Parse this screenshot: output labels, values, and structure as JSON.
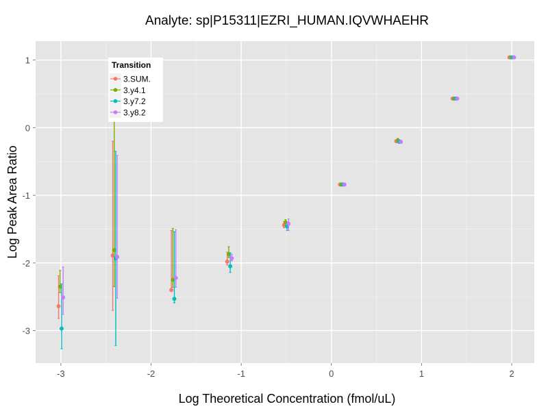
{
  "chart_data": {
    "type": "scatter",
    "title": "Analyte: sp|P15311|EZRI_HUMAN.IQVWHAEHR",
    "xlabel": "Log Theoretical Concentration (fmol/uL)",
    "ylabel": "Log Peak Area Ratio",
    "xlim": [
      -3.28,
      2.25
    ],
    "ylim": [
      -3.48,
      1.28
    ],
    "xticks": [
      -3,
      -2,
      -1,
      0,
      1,
      2
    ],
    "xtick_labels": [
      "-3",
      "-2",
      "-1",
      "0",
      "1",
      "2"
    ],
    "yticks": [
      -3,
      -2,
      -1,
      0,
      1
    ],
    "ytick_labels": [
      "-3",
      "-2",
      "-1",
      "0",
      "1"
    ],
    "grid": true,
    "legend": {
      "title": "Transition",
      "placement": "top-left"
    },
    "x": [
      -3.0,
      -2.4,
      -1.75,
      -1.13,
      -0.5,
      0.12,
      0.745,
      1.37,
      2.0
    ],
    "series": [
      {
        "name": "3.SUM.",
        "color": "#F8766D",
        "y": [
          -2.64,
          -1.89,
          -2.4,
          -1.98,
          -1.44,
          -0.84,
          -0.2,
          0.43,
          1.04
        ],
        "ymin": [
          -2.82,
          -2.7,
          -2.42,
          -2.03,
          -1.48,
          -0.86,
          -0.22,
          0.42,
          1.03
        ],
        "ymax": [
          -2.19,
          -0.2,
          -1.52,
          -1.84,
          -1.39,
          -0.82,
          -0.18,
          0.44,
          1.05
        ]
      },
      {
        "name": "3.y4.1",
        "color": "#7CAE00",
        "y": [
          -2.35,
          -1.81,
          -2.25,
          -1.87,
          -1.4,
          -0.84,
          -0.19,
          0.43,
          1.04
        ],
        "ymin": [
          -2.44,
          -2.35,
          -2.36,
          -1.92,
          -1.44,
          -0.86,
          -0.21,
          0.42,
          1.03
        ],
        "ymax": [
          -2.11,
          0.4,
          -1.49,
          -1.76,
          -1.36,
          -0.82,
          -0.16,
          0.44,
          1.05
        ]
      },
      {
        "name": "3.y7.2",
        "color": "#00BFC4",
        "y": [
          -2.97,
          -1.93,
          -2.53,
          -2.05,
          -1.46,
          -0.84,
          -0.21,
          0.43,
          1.04
        ],
        "ymin": [
          -3.27,
          -3.22,
          -2.59,
          -2.14,
          -1.52,
          -0.86,
          -0.23,
          0.42,
          1.03
        ],
        "ymax": [
          -2.31,
          -0.35,
          -1.54,
          -1.85,
          -1.4,
          -0.82,
          -0.18,
          0.44,
          1.05
        ]
      },
      {
        "name": "3.y8.2",
        "color": "#C77CFF",
        "y": [
          -2.51,
          -1.91,
          -2.22,
          -1.93,
          -1.42,
          -0.84,
          -0.21,
          0.43,
          1.04
        ],
        "ymin": [
          -2.76,
          -2.52,
          -2.36,
          -1.97,
          -1.52,
          -0.86,
          -0.23,
          0.42,
          1.03
        ],
        "ymax": [
          -2.06,
          -0.41,
          -1.51,
          -1.87,
          -1.35,
          -0.82,
          -0.19,
          0.44,
          1.05
        ]
      }
    ]
  }
}
